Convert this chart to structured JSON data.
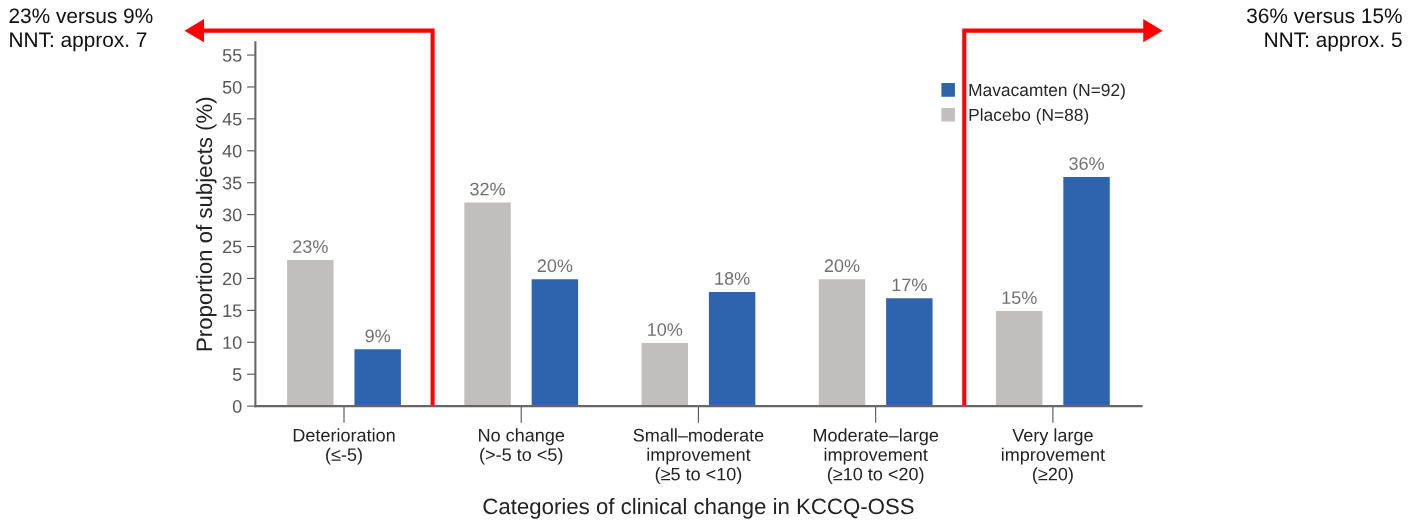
{
  "chart_data": {
    "type": "bar",
    "xlabel": "Categories of clinical change in KCCQ-OSS",
    "ylabel": "Proportion of subjects (%)",
    "categories": [
      "Deterioration\n(≤-5)",
      "No change\n(>-5 to <5)",
      "Small–moderate\nimprovement\n(≥5 to <10)",
      "Moderate–large\nimprovement\n(≥10 to <20)",
      "Very large\nimprovement\n(≥20)"
    ],
    "series": [
      {
        "name": "Placebo (N=88)",
        "color": "#c0bfbd",
        "values": [
          23,
          32,
          10,
          20,
          15
        ],
        "value_labels": [
          "23%",
          "32%",
          "10%",
          "20%",
          "15%"
        ]
      },
      {
        "name": "Mavacamten (N=92)",
        "color": "#2e64ad",
        "values": [
          9,
          20,
          18,
          17,
          36
        ],
        "value_labels": [
          "9%",
          "20%",
          "18%",
          "17%",
          "36%"
        ]
      }
    ],
    "ylim": [
      0,
      57
    ],
    "yticks": [
      0,
      5,
      10,
      15,
      20,
      25,
      30,
      35,
      40,
      45,
      50,
      55
    ],
    "grid": false,
    "legend": "top right",
    "annotations": [
      "23% versus 9%\nNNT: approx. 7",
      "36% versus 15%\nNNT: approx. 5"
    ]
  }
}
